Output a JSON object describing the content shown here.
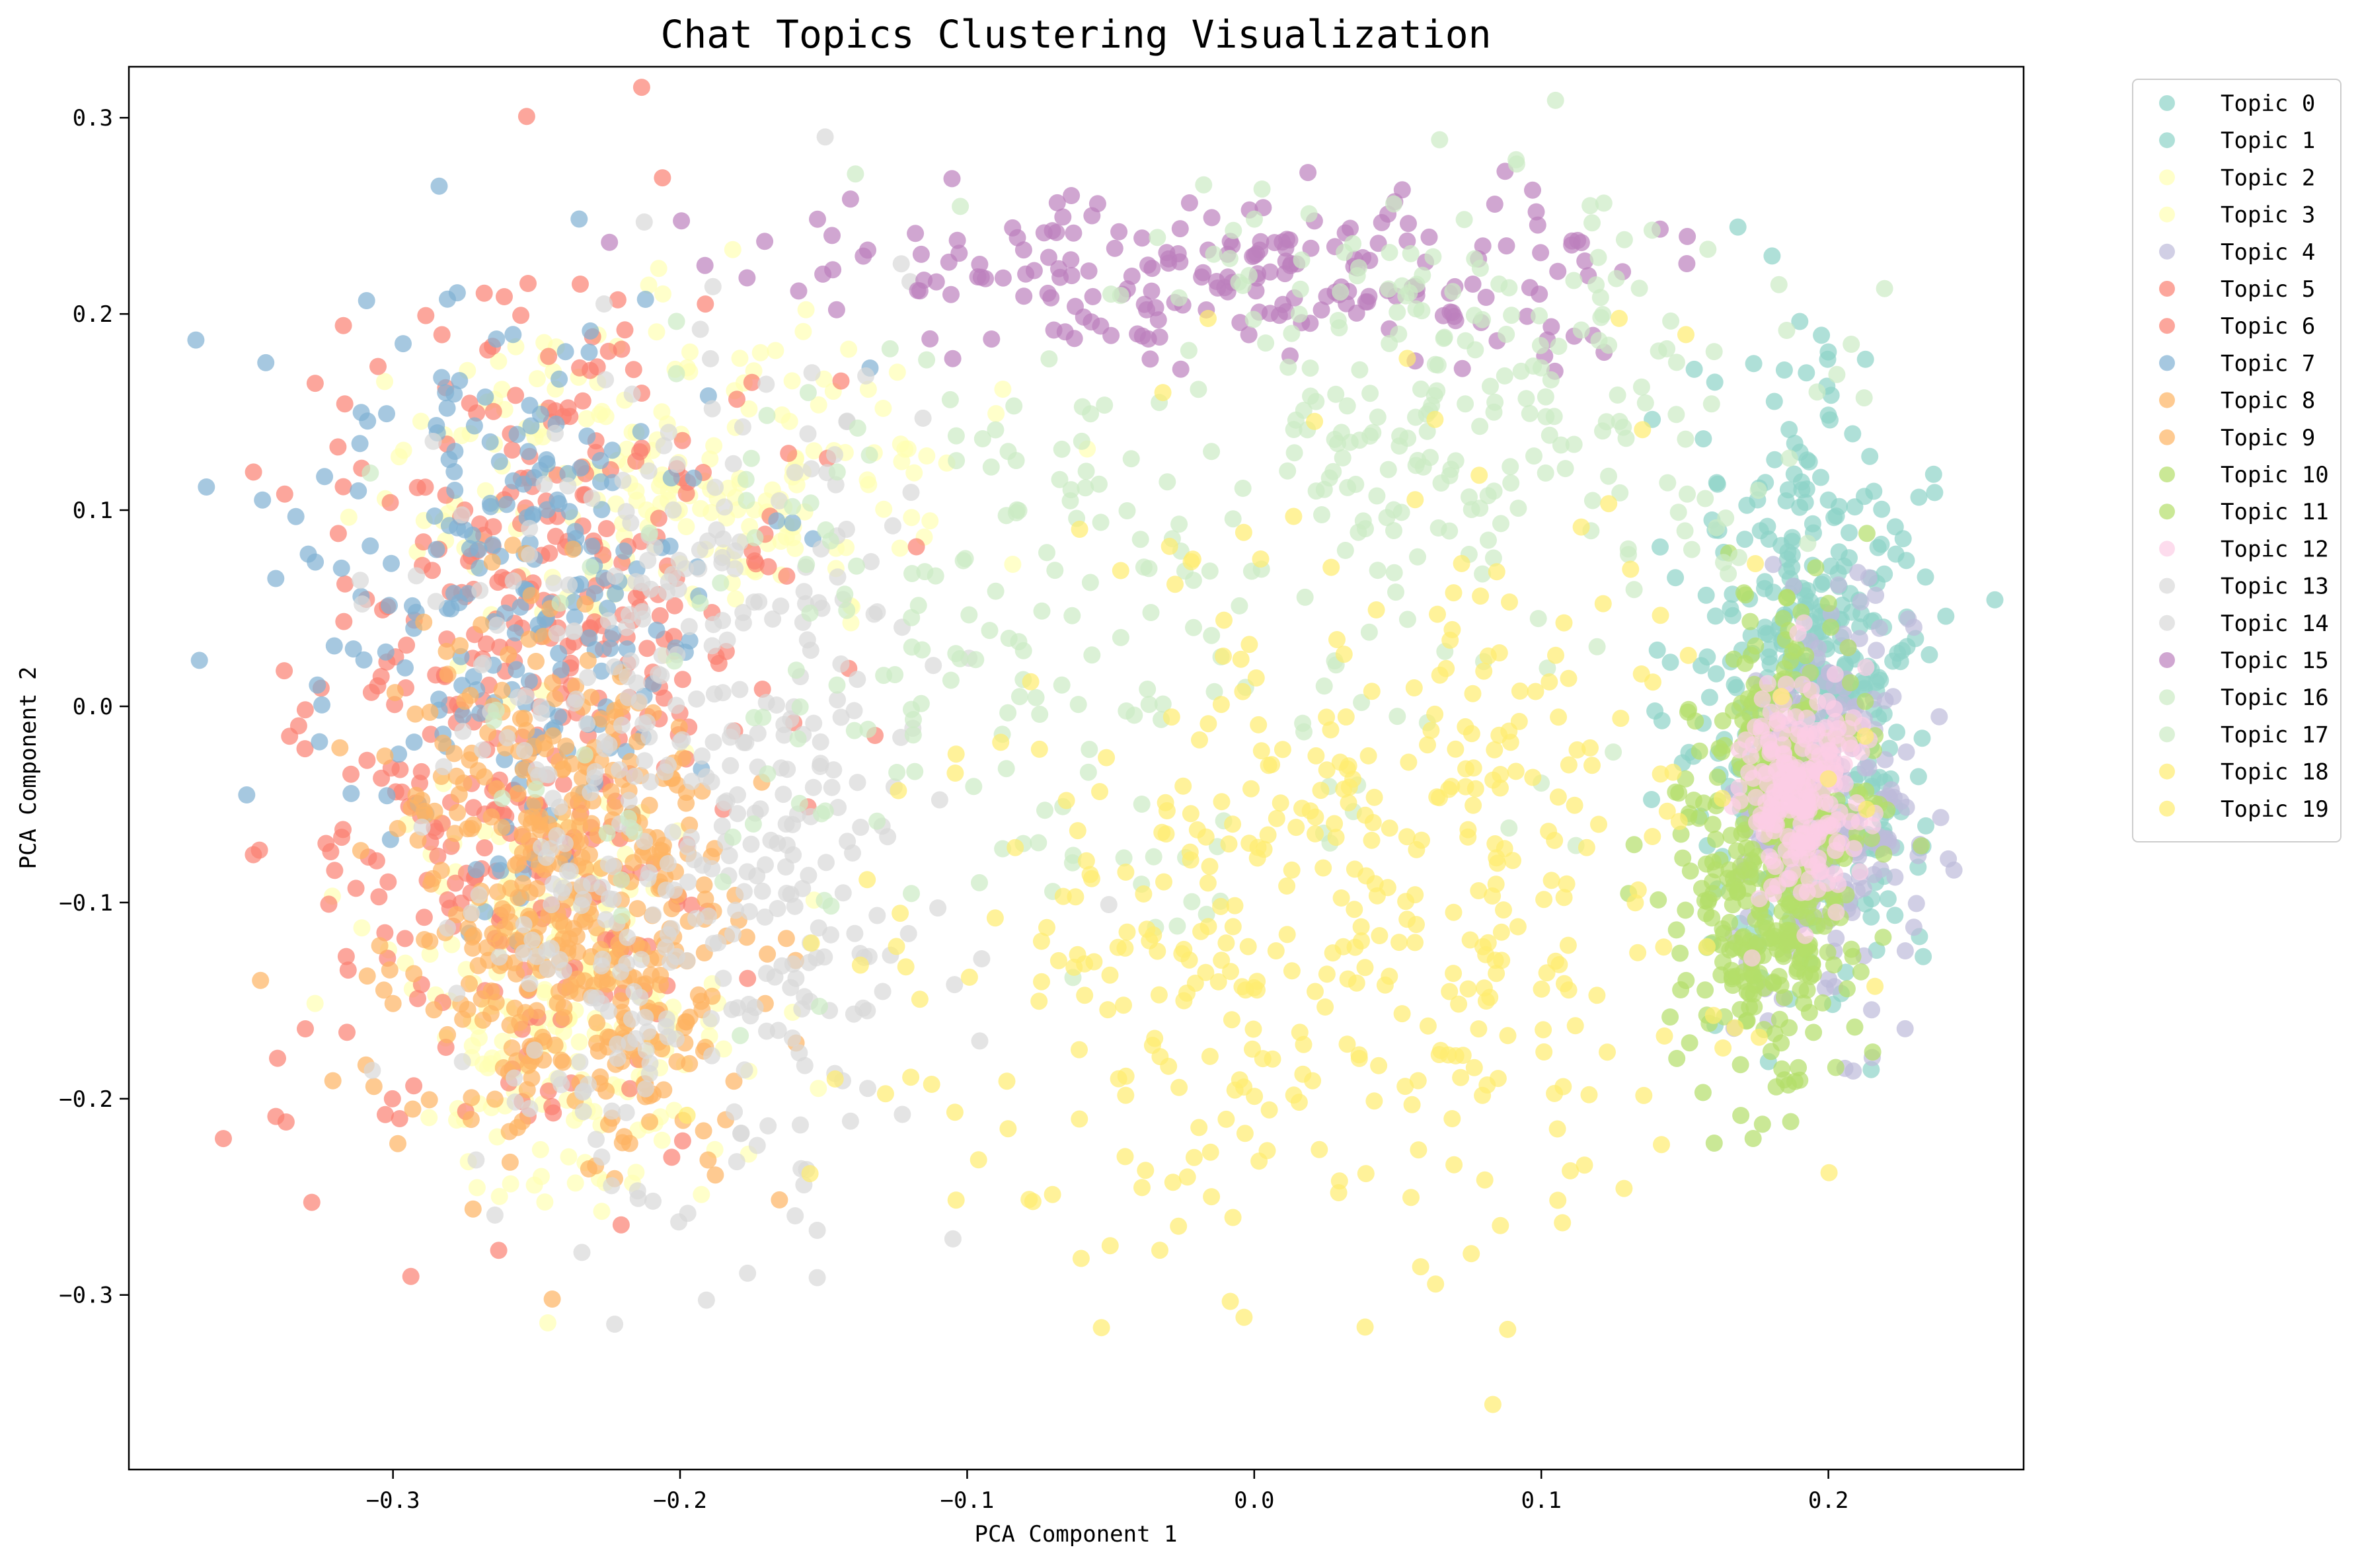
{
  "chart_data": {
    "type": "scatter",
    "title": "Chat Topics Clustering Visualization",
    "xlabel": "PCA Component 1",
    "ylabel": "PCA Component 2",
    "xlim": [
      -0.392,
      0.268
    ],
    "ylim": [
      -0.389,
      0.326
    ],
    "xticks": [
      -0.3,
      -0.2,
      -0.1,
      0.0,
      0.1,
      0.2
    ],
    "xtick_labels": [
      "−0.3",
      "−0.2",
      "−0.1",
      "0.0",
      "0.1",
      "0.2"
    ],
    "yticks": [
      -0.3,
      -0.2,
      -0.1,
      0.0,
      0.1,
      0.2,
      0.3
    ],
    "ytick_labels": [
      "−0.3",
      "−0.2",
      "−0.1",
      "0.0",
      "0.1",
      "0.2",
      "0.3"
    ],
    "grid": false,
    "legend_position": "outside-top-right",
    "marker_alpha": 0.7,
    "series": [
      {
        "name": "Topic 0",
        "color": "#8dd3c7",
        "cx": 0.2,
        "cy": 0.0,
        "sx": 0.018,
        "sy": 0.07
      },
      {
        "name": "Topic 1",
        "color": "#8dd3c7",
        "cx": 0.19,
        "cy": 0.02,
        "sx": 0.02,
        "sy": 0.08
      },
      {
        "name": "Topic 2",
        "color": "#ffffb3",
        "cx": -0.24,
        "cy": -0.15,
        "sx": 0.03,
        "sy": 0.05
      },
      {
        "name": "Topic 3",
        "color": "#ffffb3",
        "cx": -0.2,
        "cy": 0.12,
        "sx": 0.05,
        "sy": 0.04
      },
      {
        "name": "Topic 4",
        "color": "#bebada",
        "cx": 0.2,
        "cy": -0.05,
        "sx": 0.015,
        "sy": 0.05
      },
      {
        "name": "Topic 5",
        "color": "#fb8072",
        "cx": -0.26,
        "cy": -0.05,
        "sx": 0.04,
        "sy": 0.1
      },
      {
        "name": "Topic 6",
        "color": "#fb8072",
        "cx": -0.24,
        "cy": 0.05,
        "sx": 0.04,
        "sy": 0.08
      },
      {
        "name": "Topic 7",
        "color": "#80b1d3",
        "cx": -0.26,
        "cy": 0.06,
        "sx": 0.04,
        "sy": 0.08
      },
      {
        "name": "Topic 8",
        "color": "#fdb462",
        "cx": -0.25,
        "cy": -0.07,
        "sx": 0.03,
        "sy": 0.07
      },
      {
        "name": "Topic 9",
        "color": "#fdb462",
        "cx": -0.23,
        "cy": -0.14,
        "sx": 0.03,
        "sy": 0.05
      },
      {
        "name": "Topic 10",
        "color": "#b3de69",
        "cx": 0.185,
        "cy": -0.05,
        "sx": 0.015,
        "sy": 0.05
      },
      {
        "name": "Topic 11",
        "color": "#b3de69",
        "cx": 0.18,
        "cy": -0.1,
        "sx": 0.015,
        "sy": 0.05
      },
      {
        "name": "Topic 12",
        "color": "#fccde5",
        "cx": 0.19,
        "cy": -0.04,
        "sx": 0.01,
        "sy": 0.03
      },
      {
        "name": "Topic 13",
        "color": "#d9d9d9",
        "cx": -0.2,
        "cy": 0.02,
        "sx": 0.04,
        "sy": 0.09
      },
      {
        "name": "Topic 14",
        "color": "#d9d9d9",
        "cx": -0.19,
        "cy": -0.12,
        "sx": 0.04,
        "sy": 0.07
      },
      {
        "name": "Topic 15",
        "color": "#bc80bd",
        "cx": 0.0,
        "cy": 0.22,
        "sx": 0.08,
        "sy": 0.02
      },
      {
        "name": "Topic 16",
        "color": "#ccebc5",
        "cx": -0.08,
        "cy": 0.05,
        "sx": 0.08,
        "sy": 0.08
      },
      {
        "name": "Topic 17",
        "color": "#ccebc5",
        "cx": 0.08,
        "cy": 0.16,
        "sx": 0.06,
        "sy": 0.05
      },
      {
        "name": "Topic 18",
        "color": "#ffed6f",
        "cx": 0.06,
        "cy": -0.05,
        "sx": 0.06,
        "sy": 0.09
      },
      {
        "name": "Topic 19",
        "color": "#ffed6f",
        "cx": 0.0,
        "cy": -0.15,
        "sx": 0.07,
        "sy": 0.07
      }
    ]
  }
}
